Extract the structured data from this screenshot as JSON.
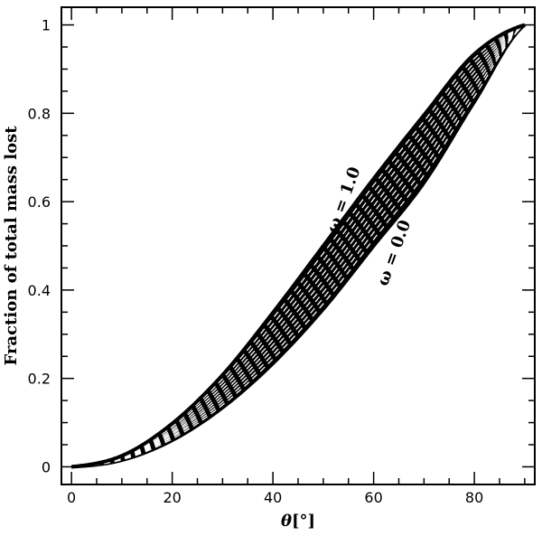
{
  "chart_data": {
    "type": "line",
    "title": "",
    "xlabel_main": "θ",
    "xlabel_unit": "[°]",
    "ylabel": "Fraction of total mass lost",
    "xlim": [
      -2,
      92
    ],
    "ylim": [
      -0.04,
      1.04
    ],
    "x_ticks": [
      0,
      20,
      40,
      60,
      80
    ],
    "y_ticks": [
      0,
      0.2,
      0.4,
      0.6,
      0.8,
      1
    ],
    "x_tick_labels": [
      "0",
      "20",
      "40",
      "60",
      "80"
    ],
    "y_tick_labels": [
      "0",
      "0.2",
      "0.4",
      "0.6",
      "0.8",
      "1"
    ],
    "annotations": [
      {
        "text": "ω = 1.0",
        "x": 55,
        "y": 0.6,
        "angle": -70
      },
      {
        "text": "ω = 0.0",
        "x": 65,
        "y": 0.48,
        "angle": -70
      }
    ],
    "series": [
      {
        "omega": 0.0,
        "style": "solid",
        "x": [
          0,
          10,
          20,
          30,
          40,
          50,
          60,
          70,
          80,
          90
        ],
        "y": [
          0,
          0.015,
          0.06,
          0.134,
          0.234,
          0.357,
          0.5,
          0.643,
          0.826,
          1.0
        ]
      },
      {
        "omega": 0.1,
        "style": "dashed",
        "x": [
          0,
          10,
          20,
          30,
          40,
          50,
          60,
          70,
          80,
          90
        ],
        "y": [
          0,
          0.016,
          0.063,
          0.14,
          0.244,
          0.369,
          0.515,
          0.66,
          0.838,
          1.0
        ]
      },
      {
        "omega": 0.2,
        "style": "dashed",
        "x": [
          0,
          10,
          20,
          30,
          40,
          50,
          60,
          70,
          80,
          90
        ],
        "y": [
          0,
          0.017,
          0.067,
          0.146,
          0.254,
          0.382,
          0.53,
          0.676,
          0.849,
          1.0
        ]
      },
      {
        "omega": 0.3,
        "style": "dashed",
        "x": [
          0,
          10,
          20,
          30,
          40,
          50,
          60,
          70,
          80,
          90
        ],
        "y": [
          0,
          0.018,
          0.07,
          0.153,
          0.265,
          0.395,
          0.545,
          0.692,
          0.861,
          1.0
        ]
      },
      {
        "omega": 0.4,
        "style": "dashed",
        "x": [
          0,
          10,
          20,
          30,
          40,
          50,
          60,
          70,
          80,
          90
        ],
        "y": [
          0,
          0.019,
          0.074,
          0.16,
          0.276,
          0.409,
          0.56,
          0.708,
          0.872,
          1.0
        ]
      },
      {
        "omega": 0.5,
        "style": "dashed",
        "x": [
          0,
          10,
          20,
          30,
          40,
          50,
          60,
          70,
          80,
          90
        ],
        "y": [
          0,
          0.02,
          0.077,
          0.167,
          0.287,
          0.423,
          0.575,
          0.723,
          0.883,
          1.0
        ]
      },
      {
        "omega": 0.6,
        "style": "dashed",
        "x": [
          0,
          10,
          20,
          30,
          40,
          50,
          60,
          70,
          80,
          90
        ],
        "y": [
          0,
          0.021,
          0.081,
          0.175,
          0.299,
          0.437,
          0.59,
          0.738,
          0.894,
          1.0
        ]
      },
      {
        "omega": 0.7,
        "style": "dashed",
        "x": [
          0,
          10,
          20,
          30,
          40,
          50,
          60,
          70,
          80,
          90
        ],
        "y": [
          0,
          0.022,
          0.085,
          0.183,
          0.311,
          0.452,
          0.606,
          0.753,
          0.904,
          1.0
        ]
      },
      {
        "omega": 0.8,
        "style": "dashed",
        "x": [
          0,
          10,
          20,
          30,
          40,
          50,
          60,
          70,
          80,
          90
        ],
        "y": [
          0,
          0.023,
          0.09,
          0.191,
          0.323,
          0.467,
          0.621,
          0.768,
          0.914,
          1.0
        ]
      },
      {
        "omega": 0.9,
        "style": "dashed",
        "x": [
          0,
          10,
          20,
          30,
          40,
          50,
          60,
          70,
          80,
          90
        ],
        "y": [
          0,
          0.024,
          0.094,
          0.199,
          0.336,
          0.483,
          0.637,
          0.782,
          0.924,
          1.0
        ]
      },
      {
        "omega": 1.0,
        "style": "solid",
        "x": [
          0,
          10,
          20,
          30,
          40,
          50,
          60,
          70,
          80,
          90
        ],
        "y": [
          0,
          0.025,
          0.098,
          0.208,
          0.349,
          0.5,
          0.652,
          0.796,
          0.934,
          1.0
        ]
      }
    ]
  }
}
